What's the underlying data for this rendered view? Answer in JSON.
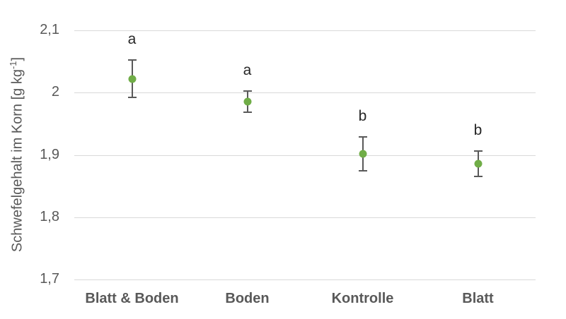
{
  "chart_data": {
    "type": "scatter",
    "title": "",
    "ylabel_main": "Schwefelgehalt im Korn [g kg",
    "ylabel_sup": "-1",
    "ylabel_close": "]",
    "categories": [
      "Blatt & Boden",
      "Boden",
      "Kontrolle",
      "Blatt"
    ],
    "values": [
      2.022,
      1.986,
      1.902,
      1.886
    ],
    "errors": [
      0.03,
      0.017,
      0.027,
      0.02
    ],
    "sig_letters": [
      "a",
      "a",
      "b",
      "b"
    ],
    "ylim": [
      1.7,
      2.1
    ],
    "ytick_values": [
      2.1,
      2.0,
      1.9,
      1.8,
      1.7
    ],
    "ytick_labels": [
      "2,1",
      "2",
      "1,9",
      "1,8",
      "1,7"
    ],
    "grid": true,
    "legend": "none",
    "colors": {
      "marker": "#70AD47",
      "errorbar": "#595959",
      "gridline": "#D9D9D9",
      "tick_label": "#595959",
      "category_label": "#595959",
      "sig_letter": "#262626",
      "background": "#FFFFFF"
    }
  }
}
